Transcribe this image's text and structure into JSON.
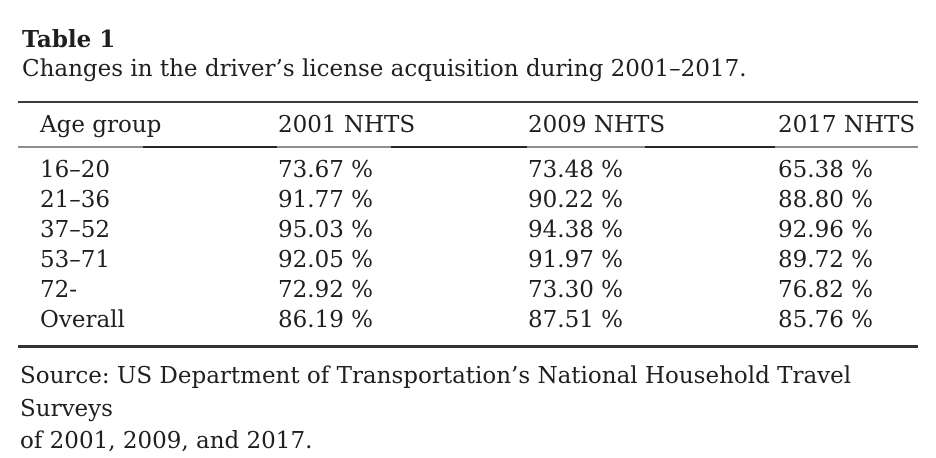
{
  "document": {
    "table_label": "Table 1",
    "caption": "Changes in the driver’s license acquisition during 2001–2017.",
    "columns": [
      "Age group",
      "2001 NHTS",
      "2009 NHTS",
      "2017 NHTS"
    ],
    "rows": [
      {
        "label": "16–20",
        "values": [
          "73.67 %",
          "73.48 %",
          "65.38 %"
        ]
      },
      {
        "label": "21–36",
        "values": [
          "91.77 %",
          "90.22 %",
          "88.80 %"
        ]
      },
      {
        "label": "37–52",
        "values": [
          "95.03 %",
          "94.38 %",
          "92.96 %"
        ]
      },
      {
        "label": "53–71",
        "values": [
          "92.05 %",
          "91.97 %",
          "89.72 %"
        ]
      },
      {
        "label": "72-",
        "values": [
          "72.92 %",
          "73.30 %",
          "76.82 %"
        ]
      },
      {
        "label": "Overall",
        "values": [
          "86.19 %",
          "87.51 %",
          "85.76 %"
        ]
      }
    ],
    "source_note": {
      "line1": "Source: US Department of Transportation’s National Household Travel Surveys",
      "line2": "of 2001, 2009, and 2017."
    }
  },
  "colors": {
    "background": "#ffffff",
    "text": "#1f1f1f",
    "rule_dark": "#3b3b3b",
    "rule_mid_light": "#8f8f8f",
    "rule_mid_dark": "#262626"
  }
}
